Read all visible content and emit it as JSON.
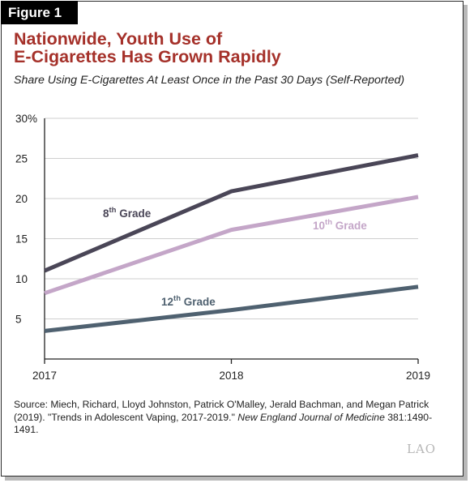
{
  "figure_label": "Figure 1",
  "title_line1": "Nationwide, Youth Use of",
  "title_line2": "E-Cigarettes Has Grown Rapidly",
  "subtitle": "Share Using E-Cigarettes At Least Once in the Past 30 Days (Self-Reported)",
  "source": {
    "prefix": "Source: Miech, Richard, Lloyd Johnston, Patrick O'Malley, Jerald Bachman, and Megan Patrick (2019). \"Trends in Adolescent Vaping, 2017-2019.\" ",
    "journal": "New England Journal of Medicine",
    "suffix": " 381:1490-1491."
  },
  "logo_text": "LAO",
  "colors": {
    "title": "#a5312a",
    "grade8": "#4a4657",
    "grade10": "#c4a6c8",
    "grade12": "#4f6170",
    "grid": "#cfcfcf",
    "axis": "#222222"
  },
  "chart_data": {
    "type": "line",
    "x": [
      "2017",
      "2018",
      "2019"
    ],
    "ylim": [
      0,
      30
    ],
    "yticks": [
      5,
      10,
      15,
      20,
      25,
      30
    ],
    "ytick_labels": [
      "5",
      "10",
      "15",
      "20",
      "25",
      "30%"
    ],
    "grid": true,
    "series": [
      {
        "name": "8th Grade",
        "base": "8",
        "sup": "th",
        "rest": " Grade",
        "color": "#4a4657",
        "values": [
          11.0,
          20.9,
          25.4
        ]
      },
      {
        "name": "10th Grade",
        "base": "10",
        "sup": "th",
        "rest": " Grade",
        "color": "#c4a6c8",
        "values": [
          8.2,
          16.1,
          20.2
        ]
      },
      {
        "name": "12th Grade",
        "base": "12",
        "sup": "th",
        "rest": " Grade",
        "color": "#4f6170",
        "values": [
          3.5,
          6.1,
          9.0
        ]
      }
    ]
  }
}
